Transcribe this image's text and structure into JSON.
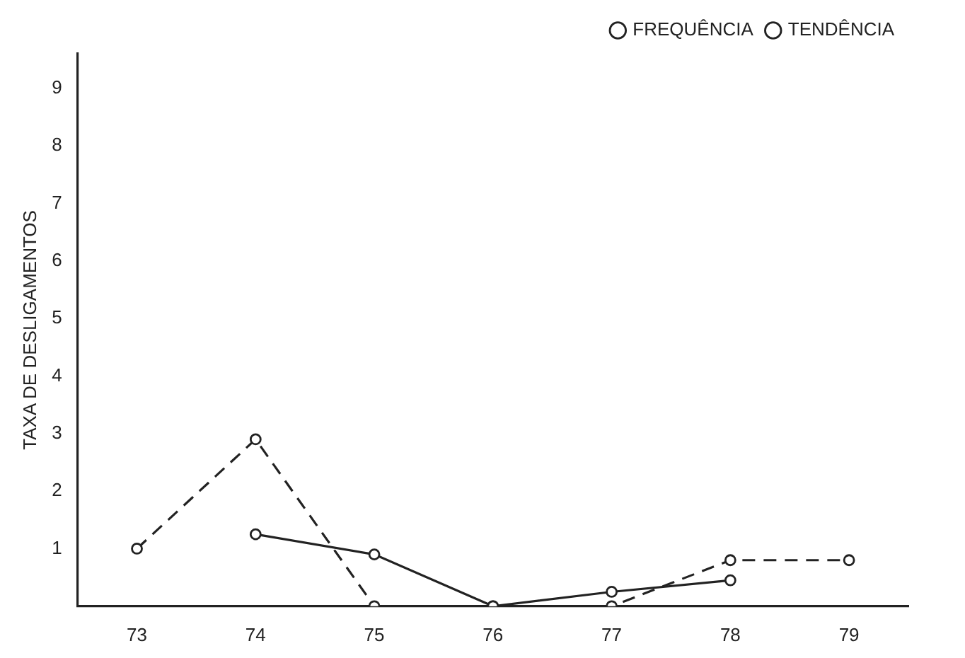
{
  "chart_data": {
    "type": "line",
    "ylabel": "TAXA DE DESLIGAMENTOS",
    "categories": [
      "73",
      "74",
      "75",
      "76",
      "77",
      "78",
      "79"
    ],
    "series": [
      {
        "name": "FREQUÊNCIA",
        "color": "#222222",
        "line_style": "dashed",
        "values": [
          1,
          2.9,
          0,
          0,
          0,
          0.8,
          0.8
        ]
      },
      {
        "name": "TENDÊNCIA",
        "color": "#222222",
        "line_style": "solid",
        "values": [
          null,
          1.25,
          0.9,
          0,
          0.25,
          0.45,
          null
        ]
      }
    ],
    "ylim": [
      0,
      9.6
    ],
    "yticks": [
      1,
      2,
      3,
      4,
      5,
      6,
      7,
      8,
      9
    ],
    "grid": false,
    "legend": "top right",
    "marker": "circle"
  }
}
